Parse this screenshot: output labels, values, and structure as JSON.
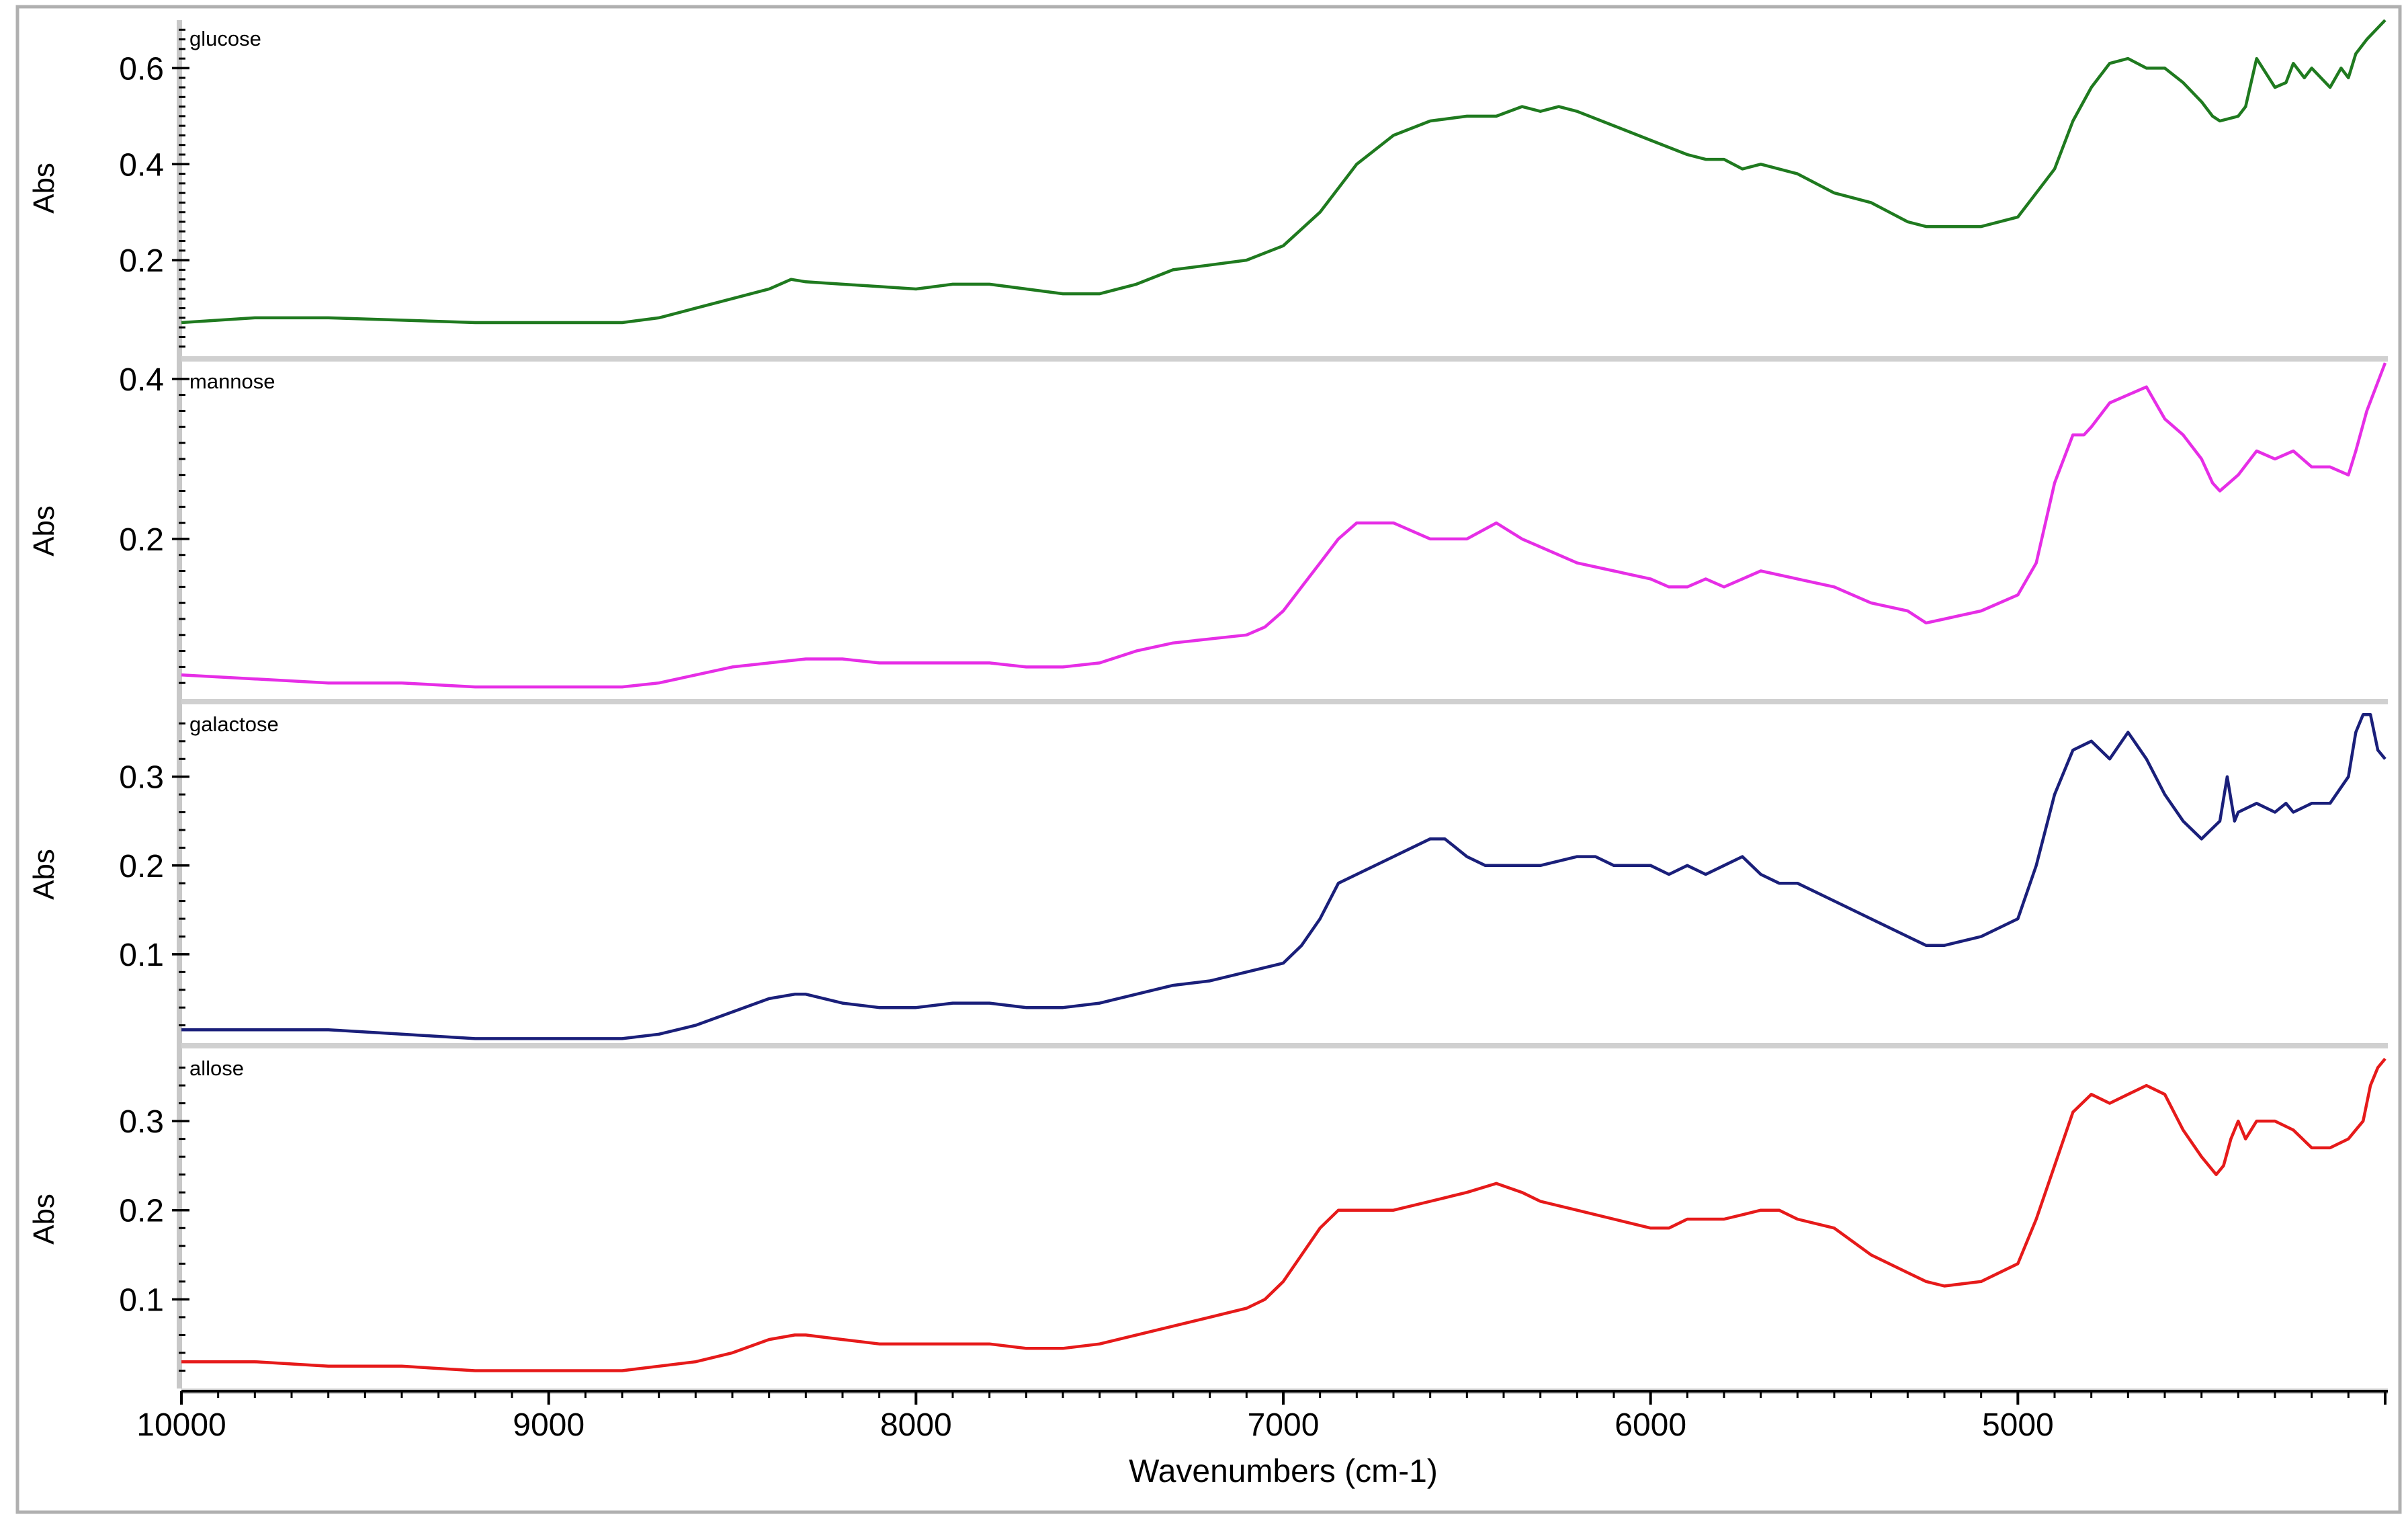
{
  "chart_data": {
    "type": "line",
    "xlabel": "Wavenumbers (cm-1)",
    "xlim": [
      10000,
      4000
    ],
    "x_ticks": [
      10000,
      9000,
      8000,
      7000,
      6000,
      5000
    ],
    "grid": false,
    "panels": [
      {
        "name": "glucose",
        "ylabel": "Abs",
        "color": "#1f7a1f",
        "ylim": [
          0.0,
          0.7
        ],
        "y_ticks": [
          0.2,
          0.4,
          0.6
        ],
        "y_tick_labels": [
          "0.2",
          "0.4",
          "0.6"
        ],
        "x": [
          10000,
          9800,
          9600,
          9400,
          9200,
          9000,
          8800,
          8700,
          8600,
          8500,
          8400,
          8340,
          8300,
          8200,
          8100,
          8000,
          7900,
          7800,
          7700,
          7600,
          7500,
          7400,
          7300,
          7200,
          7100,
          7000,
          6900,
          6800,
          6700,
          6600,
          6500,
          6420,
          6350,
          6300,
          6250,
          6200,
          6100,
          6000,
          5900,
          5850,
          5800,
          5750,
          5700,
          5600,
          5500,
          5400,
          5300,
          5250,
          5200,
          5100,
          5000,
          4900,
          4850,
          4800,
          4750,
          4700,
          4650,
          4600,
          4550,
          4500,
          4470,
          4450,
          4400,
          4380,
          4350,
          4300,
          4270,
          4250,
          4220,
          4200,
          4150,
          4120,
          4100,
          4080,
          4050,
          4000
        ],
        "y": [
          0.07,
          0.08,
          0.08,
          0.075,
          0.07,
          0.07,
          0.07,
          0.08,
          0.1,
          0.12,
          0.14,
          0.16,
          0.155,
          0.15,
          0.145,
          0.14,
          0.15,
          0.15,
          0.14,
          0.13,
          0.13,
          0.15,
          0.18,
          0.19,
          0.2,
          0.23,
          0.3,
          0.4,
          0.46,
          0.49,
          0.5,
          0.5,
          0.52,
          0.51,
          0.52,
          0.51,
          0.48,
          0.45,
          0.42,
          0.41,
          0.41,
          0.39,
          0.4,
          0.38,
          0.34,
          0.32,
          0.28,
          0.27,
          0.27,
          0.27,
          0.29,
          0.39,
          0.49,
          0.56,
          0.61,
          0.62,
          0.6,
          0.6,
          0.57,
          0.53,
          0.5,
          0.49,
          0.5,
          0.52,
          0.62,
          0.56,
          0.57,
          0.61,
          0.58,
          0.6,
          0.56,
          0.6,
          0.58,
          0.63,
          0.66,
          0.7
        ]
      },
      {
        "name": "mannose",
        "ylabel": "Abs",
        "color": "#e62ee6",
        "ylim": [
          0.0,
          0.42
        ],
        "y_ticks": [
          0.2,
          0.4
        ],
        "y_tick_labels": [
          "0.2",
          "0.4"
        ],
        "x": [
          10000,
          9800,
          9600,
          9400,
          9200,
          9000,
          8800,
          8700,
          8600,
          8500,
          8400,
          8300,
          8250,
          8200,
          8100,
          8000,
          7900,
          7800,
          7700,
          7600,
          7500,
          7400,
          7300,
          7200,
          7100,
          7050,
          7000,
          6950,
          6900,
          6850,
          6800,
          6700,
          6600,
          6500,
          6420,
          6350,
          6300,
          6200,
          6100,
          6000,
          5950,
          5900,
          5850,
          5800,
          5750,
          5700,
          5600,
          5500,
          5400,
          5300,
          5250,
          5200,
          5100,
          5000,
          4950,
          4900,
          4850,
          4820,
          4800,
          4750,
          4700,
          4650,
          4600,
          4550,
          4500,
          4470,
          4450,
          4400,
          4350,
          4300,
          4250,
          4200,
          4150,
          4100,
          4080,
          4050,
          4000
        ],
        "y": [
          0.03,
          0.025,
          0.02,
          0.02,
          0.015,
          0.015,
          0.015,
          0.02,
          0.03,
          0.04,
          0.045,
          0.05,
          0.05,
          0.05,
          0.045,
          0.045,
          0.045,
          0.045,
          0.04,
          0.04,
          0.045,
          0.06,
          0.07,
          0.075,
          0.08,
          0.09,
          0.11,
          0.14,
          0.17,
          0.2,
          0.22,
          0.22,
          0.2,
          0.2,
          0.22,
          0.2,
          0.19,
          0.17,
          0.16,
          0.15,
          0.14,
          0.14,
          0.15,
          0.14,
          0.15,
          0.16,
          0.15,
          0.14,
          0.12,
          0.11,
          0.095,
          0.1,
          0.11,
          0.13,
          0.17,
          0.27,
          0.33,
          0.33,
          0.34,
          0.37,
          0.38,
          0.39,
          0.35,
          0.33,
          0.3,
          0.27,
          0.26,
          0.28,
          0.31,
          0.3,
          0.31,
          0.29,
          0.29,
          0.28,
          0.31,
          0.36,
          0.42
        ]
      },
      {
        "name": "galactose",
        "ylabel": "Abs",
        "color": "#1a1f7a",
        "ylim": [
          0.0,
          0.38
        ],
        "y_ticks": [
          0.1,
          0.2,
          0.3
        ],
        "y_tick_labels": [
          "0.1",
          "0.2",
          "0.3"
        ],
        "x": [
          10000,
          9800,
          9600,
          9400,
          9200,
          9000,
          8800,
          8700,
          8600,
          8500,
          8400,
          8330,
          8300,
          8200,
          8100,
          8000,
          7900,
          7800,
          7700,
          7600,
          7500,
          7400,
          7300,
          7200,
          7100,
          7000,
          6950,
          6900,
          6850,
          6800,
          6700,
          6600,
          6560,
          6500,
          6450,
          6400,
          6300,
          6200,
          6150,
          6100,
          6000,
          5950,
          5900,
          5850,
          5800,
          5750,
          5700,
          5650,
          5600,
          5500,
          5400,
          5300,
          5250,
          5200,
          5100,
          5000,
          4950,
          4900,
          4850,
          4800,
          4750,
          4700,
          4650,
          4600,
          4550,
          4500,
          4450,
          4430,
          4410,
          4400,
          4350,
          4300,
          4270,
          4250,
          4200,
          4150,
          4100,
          4080,
          4060,
          4040,
          4020,
          4000
        ],
        "y": [
          0.015,
          0.015,
          0.015,
          0.01,
          0.005,
          0.005,
          0.005,
          0.01,
          0.02,
          0.035,
          0.05,
          0.055,
          0.055,
          0.045,
          0.04,
          0.04,
          0.045,
          0.045,
          0.04,
          0.04,
          0.045,
          0.055,
          0.065,
          0.07,
          0.08,
          0.09,
          0.11,
          0.14,
          0.18,
          0.19,
          0.21,
          0.23,
          0.23,
          0.21,
          0.2,
          0.2,
          0.2,
          0.21,
          0.21,
          0.2,
          0.2,
          0.19,
          0.2,
          0.19,
          0.2,
          0.21,
          0.19,
          0.18,
          0.18,
          0.16,
          0.14,
          0.12,
          0.11,
          0.11,
          0.12,
          0.14,
          0.2,
          0.28,
          0.33,
          0.34,
          0.32,
          0.35,
          0.32,
          0.28,
          0.25,
          0.23,
          0.25,
          0.3,
          0.25,
          0.26,
          0.27,
          0.26,
          0.27,
          0.26,
          0.27,
          0.27,
          0.3,
          0.35,
          0.37,
          0.37,
          0.33,
          0.32
        ]
      },
      {
        "name": "allose",
        "ylabel": "Abs",
        "color": "#e61a1a",
        "ylim": [
          0.0,
          0.38
        ],
        "y_ticks": [
          0.1,
          0.2,
          0.3
        ],
        "y_tick_labels": [
          "0.1",
          "0.2",
          "0.3"
        ],
        "x": [
          10000,
          9800,
          9600,
          9400,
          9200,
          9000,
          8800,
          8700,
          8600,
          8500,
          8400,
          8330,
          8300,
          8200,
          8100,
          8000,
          7900,
          7800,
          7700,
          7600,
          7500,
          7400,
          7300,
          7200,
          7100,
          7050,
          7000,
          6950,
          6900,
          6850,
          6800,
          6700,
          6600,
          6500,
          6420,
          6350,
          6300,
          6200,
          6100,
          6000,
          5950,
          5900,
          5850,
          5800,
          5750,
          5700,
          5650,
          5600,
          5500,
          5400,
          5300,
          5250,
          5200,
          5100,
          5000,
          4950,
          4900,
          4850,
          4800,
          4750,
          4700,
          4650,
          4600,
          4550,
          4500,
          4460,
          4440,
          4420,
          4400,
          4380,
          4350,
          4320,
          4300,
          4250,
          4200,
          4150,
          4100,
          4060,
          4040,
          4020,
          4000
        ],
        "y": [
          0.03,
          0.03,
          0.025,
          0.025,
          0.02,
          0.02,
          0.02,
          0.025,
          0.03,
          0.04,
          0.055,
          0.06,
          0.06,
          0.055,
          0.05,
          0.05,
          0.05,
          0.05,
          0.045,
          0.045,
          0.05,
          0.06,
          0.07,
          0.08,
          0.09,
          0.1,
          0.12,
          0.15,
          0.18,
          0.2,
          0.2,
          0.2,
          0.21,
          0.22,
          0.23,
          0.22,
          0.21,
          0.2,
          0.19,
          0.18,
          0.18,
          0.19,
          0.19,
          0.19,
          0.195,
          0.2,
          0.2,
          0.19,
          0.18,
          0.15,
          0.13,
          0.12,
          0.115,
          0.12,
          0.14,
          0.19,
          0.25,
          0.31,
          0.33,
          0.32,
          0.33,
          0.34,
          0.33,
          0.29,
          0.26,
          0.24,
          0.25,
          0.28,
          0.3,
          0.28,
          0.3,
          0.3,
          0.3,
          0.29,
          0.27,
          0.27,
          0.28,
          0.3,
          0.34,
          0.36,
          0.37
        ]
      }
    ]
  }
}
